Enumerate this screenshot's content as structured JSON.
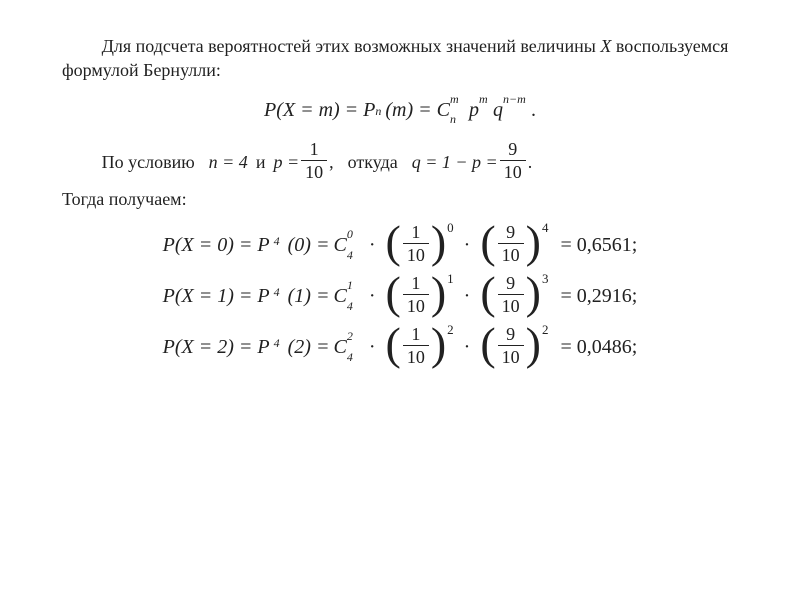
{
  "text": {
    "intro_a": "Для подсчета вероятностей этих возможных значений величины ",
    "intro_X": "X",
    "intro_b": " вос­пользуемся формулой Бернулли:",
    "cond_lead": "По условию",
    "cond_and": "и",
    "cond_from": "откуда",
    "then": "Тогда получаем:"
  },
  "formula_main": {
    "lhs": "P(X = m) = P",
    "Pnm_sub": "n",
    "Pnm_arg": "(m) = ",
    "C_base": "C",
    "C_sup": "m",
    "C_sub": "n",
    "p_base": "p",
    "p_sup": "m",
    "q_base": "q",
    "q_sup": "n−m",
    "tail": "."
  },
  "cond": {
    "n_eq": "n = 4",
    "p_eq": "p =",
    "p_num": "1",
    "p_den": "10",
    "comma": ",",
    "q_eq": "q = 1 − p =",
    "q_num": "9",
    "q_den": "10",
    "dot": "."
  },
  "rows": [
    {
      "lhs": "P(X = 0) = P",
      "P_sub": "4",
      "P_arg": "(0) = ",
      "C_base": "C",
      "C_sup": "0",
      "C_sub": "4",
      "term1": {
        "num": "1",
        "den": "10",
        "exp": "0"
      },
      "term2": {
        "num": "9",
        "den": "10",
        "exp": "4"
      },
      "value": "= 0,6561;"
    },
    {
      "lhs": "P(X = 1) = P",
      "P_sub": "4",
      "P_arg": "(1) = ",
      "C_base": "C",
      "C_sup": "1",
      "C_sub": "4",
      "term1": {
        "num": "1",
        "den": "10",
        "exp": "1"
      },
      "term2": {
        "num": "9",
        "den": "10",
        "exp": "3"
      },
      "value": "= 0,2916;"
    },
    {
      "lhs": "P(X = 2) = P",
      "P_sub": "4",
      "P_arg": "(2) = ",
      "C_base": "C",
      "C_sup": "2",
      "C_sub": "4",
      "term1": {
        "num": "1",
        "den": "10",
        "exp": "2"
      },
      "term2": {
        "num": "9",
        "den": "10",
        "exp": "2"
      },
      "value": "= 0,0486;"
    }
  ]
}
